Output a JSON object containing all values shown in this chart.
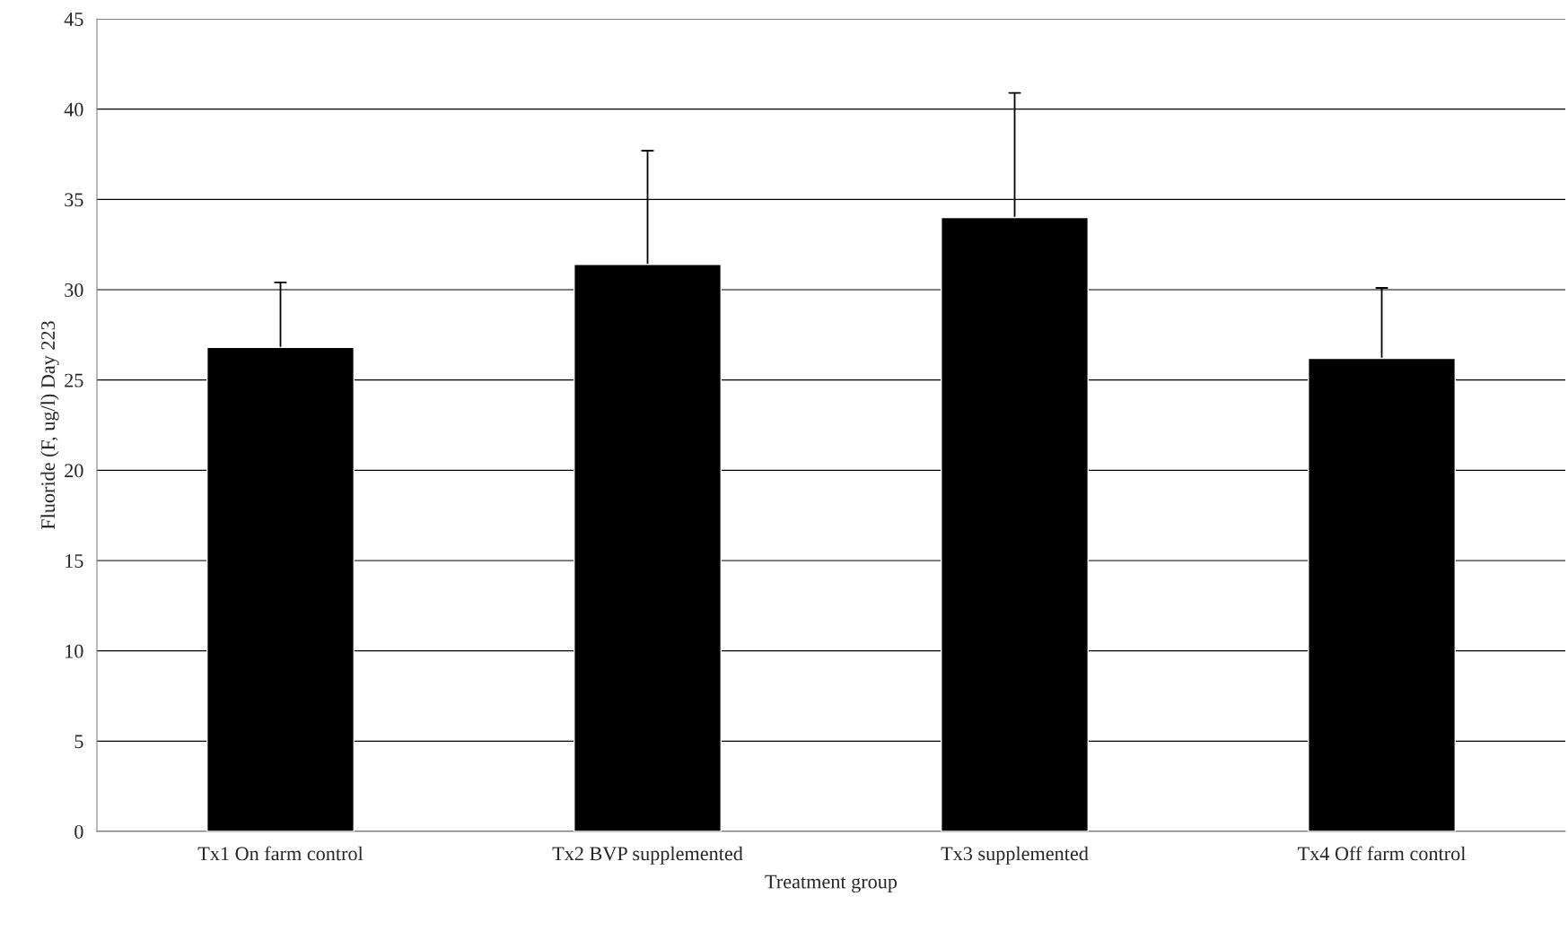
{
  "chart_data": {
    "type": "bar",
    "xlabel": "Treatment group",
    "ylabel": "Fluoride (F, ug/l) Day 223",
    "categories": [
      "Tx1 On farm control",
      "Tx2 BVP supplemented",
      "Tx3 supplemented",
      "Tx4 Off farm control"
    ],
    "series": [
      {
        "color": "#000000",
        "values": [
          26.8,
          31.4,
          34.0,
          26.2
        ],
        "errors": [
          3.6,
          6.3,
          6.9,
          3.9
        ]
      }
    ],
    "ylim": [
      0,
      45
    ],
    "yticks": [
      0,
      5,
      10,
      15,
      20,
      25,
      30,
      35,
      40,
      45
    ],
    "grid": "y",
    "legend": false
  }
}
